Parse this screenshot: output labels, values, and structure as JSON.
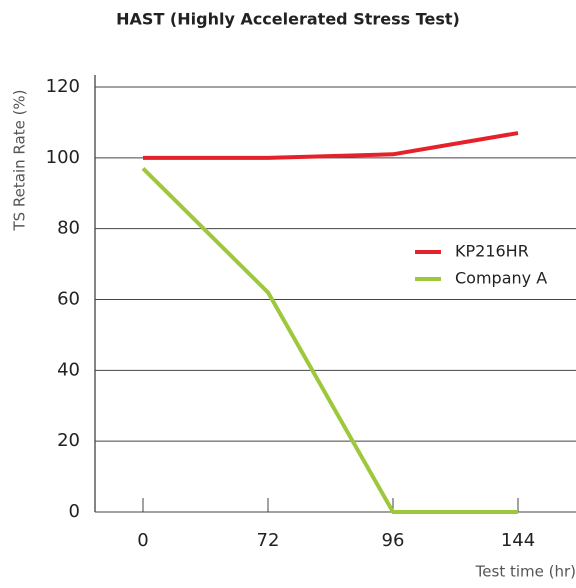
{
  "chart_data": {
    "type": "line",
    "title": "HAST (Highly Accelerated Stress Test)",
    "y_label": "TS Retain Rate (%)",
    "x_label": "Test time (hr)",
    "categories": [
      "0",
      "72",
      "96",
      "144"
    ],
    "series": [
      {
        "name": "KP216HR",
        "color": "#e52129",
        "values": [
          100,
          100,
          101,
          107
        ]
      },
      {
        "name": "Company A",
        "color": "#9dc83b",
        "values": [
          97,
          62,
          0,
          0
        ]
      }
    ],
    "ylim": [
      0,
      120
    ],
    "yticks": [
      0,
      20,
      40,
      60,
      80,
      100,
      120
    ],
    "grid": true
  }
}
